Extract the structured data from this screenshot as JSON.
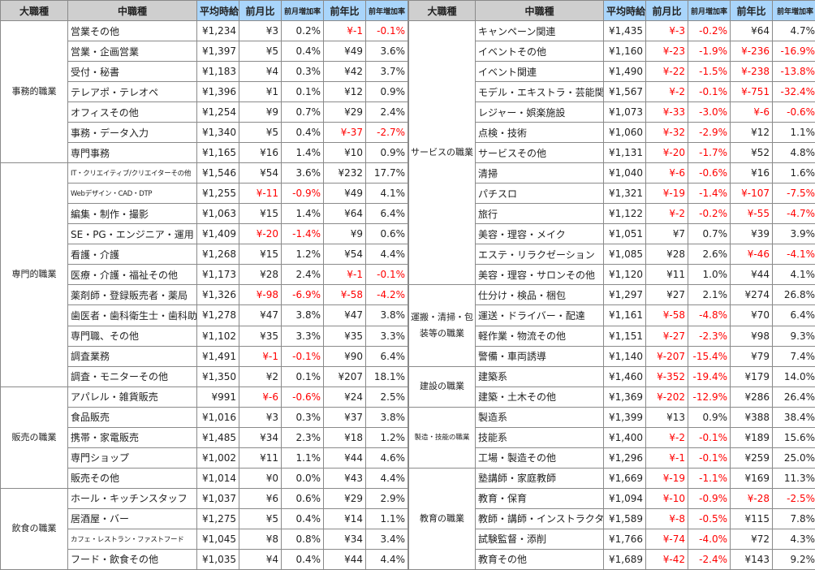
{
  "headers": [
    "大職種",
    "中職種",
    "平均時給",
    "前月比",
    "前月増加率",
    "前年比",
    "前年増加率"
  ],
  "colors": {
    "negative": "#ff0000",
    "header_gray": "#cfcfcf",
    "header_blue": "#a9d5fb",
    "border": "#8a8a8a"
  },
  "tables": [
    {
      "groups": [
        {
          "name": "事務的職業",
          "rows": [
            [
              "営業その他",
              "¥1,234",
              "¥3",
              "0.2%",
              "¥-1",
              "-0.1%"
            ],
            [
              "営業・企画営業",
              "¥1,397",
              "¥5",
              "0.4%",
              "¥49",
              "3.6%"
            ],
            [
              "受付・秘書",
              "¥1,183",
              "¥4",
              "0.3%",
              "¥42",
              "3.7%"
            ],
            [
              "テレアポ・テレオペ",
              "¥1,396",
              "¥1",
              "0.1%",
              "¥12",
              "0.9%"
            ],
            [
              "オフィスその他",
              "¥1,254",
              "¥9",
              "0.7%",
              "¥29",
              "2.4%"
            ],
            [
              "事務・データ入力",
              "¥1,340",
              "¥5",
              "0.4%",
              "¥-37",
              "-2.7%"
            ],
            [
              "専門事務",
              "¥1,165",
              "¥16",
              "1.4%",
              "¥10",
              "0.9%"
            ]
          ]
        },
        {
          "name": "専門的職業",
          "rows": [
            [
              "IT・クリエイティブ/クリエイターその他",
              "¥1,546",
              "¥54",
              "3.6%",
              "¥232",
              "17.7%"
            ],
            [
              "Webデザイン・CAD・DTP",
              "¥1,255",
              "¥-11",
              "-0.9%",
              "¥49",
              "4.1%"
            ],
            [
              "編集・制作・撮影",
              "¥1,063",
              "¥15",
              "1.4%",
              "¥64",
              "6.4%"
            ],
            [
              "SE・PG・エンジニア・運用",
              "¥1,409",
              "¥-20",
              "-1.4%",
              "¥9",
              "0.6%"
            ],
            [
              "看護・介護",
              "¥1,268",
              "¥15",
              "1.2%",
              "¥54",
              "4.4%"
            ],
            [
              "医療・介護・福祉その他",
              "¥1,173",
              "¥28",
              "2.4%",
              "¥-1",
              "-0.1%"
            ],
            [
              "薬剤師・登録販売者・薬局",
              "¥1,326",
              "¥-98",
              "-6.9%",
              "¥-58",
              "-4.2%"
            ],
            [
              "歯医者・歯科衛生士・歯科助手",
              "¥1,278",
              "¥47",
              "3.8%",
              "¥47",
              "3.8%"
            ],
            [
              "専門職、その他",
              "¥1,102",
              "¥35",
              "3.3%",
              "¥35",
              "3.3%"
            ],
            [
              "調査業務",
              "¥1,491",
              "¥-1",
              "-0.1%",
              "¥90",
              "6.4%"
            ],
            [
              "調査・モニターその他",
              "¥1,350",
              "¥2",
              "0.1%",
              "¥207",
              "18.1%"
            ]
          ]
        },
        {
          "name": "販売の職業",
          "rows": [
            [
              "アパレル・雑貨販売",
              "¥991",
              "¥-6",
              "-0.6%",
              "¥24",
              "2.5%"
            ],
            [
              "食品販売",
              "¥1,016",
              "¥3",
              "0.3%",
              "¥37",
              "3.8%"
            ],
            [
              "携帯・家電販売",
              "¥1,485",
              "¥34",
              "2.3%",
              "¥18",
              "1.2%"
            ],
            [
              "専門ショップ",
              "¥1,002",
              "¥11",
              "1.1%",
              "¥44",
              "4.6%"
            ],
            [
              "販売その他",
              "¥1,014",
              "¥0",
              "0.0%",
              "¥43",
              "4.4%"
            ]
          ]
        },
        {
          "name": "飲食の職業",
          "rows": [
            [
              "ホール・キッチンスタッフ",
              "¥1,037",
              "¥6",
              "0.6%",
              "¥29",
              "2.9%"
            ],
            [
              "居酒屋・バー",
              "¥1,275",
              "¥5",
              "0.4%",
              "¥14",
              "1.1%"
            ],
            [
              "カフェ・レストラン・ファストフード",
              "¥1,045",
              "¥8",
              "0.8%",
              "¥34",
              "3.4%"
            ],
            [
              "フード・飲食その他",
              "¥1,035",
              "¥4",
              "0.4%",
              "¥44",
              "4.4%"
            ]
          ]
        }
      ]
    },
    {
      "groups": [
        {
          "name": "サービスの職業",
          "rows": [
            [
              "キャンペーン関連",
              "¥1,435",
              "¥-3",
              "-0.2%",
              "¥64",
              "4.7%"
            ],
            [
              "イベントその他",
              "¥1,160",
              "¥-23",
              "-1.9%",
              "¥-236",
              "-16.9%"
            ],
            [
              "イベント関連",
              "¥1,490",
              "¥-22",
              "-1.5%",
              "¥-238",
              "-13.8%"
            ],
            [
              "モデル・エキストラ・芸能関連",
              "¥1,567",
              "¥-2",
              "-0.1%",
              "¥-751",
              "-32.4%"
            ],
            [
              "レジャー・娯楽施設",
              "¥1,073",
              "¥-33",
              "-3.0%",
              "¥-6",
              "-0.6%"
            ],
            [
              "点検・技術",
              "¥1,060",
              "¥-32",
              "-2.9%",
              "¥12",
              "1.1%"
            ],
            [
              "サービスその他",
              "¥1,131",
              "¥-20",
              "-1.7%",
              "¥52",
              "4.8%"
            ],
            [
              "清掃",
              "¥1,040",
              "¥-6",
              "-0.6%",
              "¥16",
              "1.6%"
            ],
            [
              "パチスロ",
              "¥1,321",
              "¥-19",
              "-1.4%",
              "¥-107",
              "-7.5%"
            ],
            [
              "旅行",
              "¥1,122",
              "¥-2",
              "-0.2%",
              "¥-55",
              "-4.7%"
            ],
            [
              "美容・理容・メイク",
              "¥1,051",
              "¥7",
              "0.7%",
              "¥39",
              "3.9%"
            ],
            [
              "エステ・リラクゼーション",
              "¥1,085",
              "¥28",
              "2.6%",
              "¥-46",
              "-4.1%"
            ],
            [
              "美容・理容・サロンその他",
              "¥1,120",
              "¥11",
              "1.0%",
              "¥44",
              "4.1%"
            ]
          ]
        },
        {
          "name": "運搬・清掃・包装等の職業",
          "rows": [
            [
              "仕分け・検品・梱包",
              "¥1,297",
              "¥27",
              "2.1%",
              "¥274",
              "26.8%"
            ],
            [
              "運送・ドライバー・配達",
              "¥1,161",
              "¥-58",
              "-4.8%",
              "¥70",
              "6.4%"
            ],
            [
              "軽作業・物流その他",
              "¥1,151",
              "¥-27",
              "-2.3%",
              "¥98",
              "9.3%"
            ],
            [
              "警備・車両誘導",
              "¥1,140",
              "¥-207",
              "-15.4%",
              "¥79",
              "7.4%"
            ]
          ]
        },
        {
          "name": "建設の職業",
          "rows": [
            [
              "建築系",
              "¥1,460",
              "¥-352",
              "-19.4%",
              "¥179",
              "14.0%"
            ],
            [
              "建築・土木その他",
              "¥1,369",
              "¥-202",
              "-12.9%",
              "¥286",
              "26.4%"
            ]
          ]
        },
        {
          "name": "製造・技能の職業",
          "rows": [
            [
              "製造系",
              "¥1,399",
              "¥13",
              "0.9%",
              "¥388",
              "38.4%"
            ],
            [
              "技能系",
              "¥1,400",
              "¥-2",
              "-0.1%",
              "¥189",
              "15.6%"
            ],
            [
              "工場・製造その他",
              "¥1,296",
              "¥-1",
              "-0.1%",
              "¥259",
              "25.0%"
            ]
          ]
        },
        {
          "name": "教育の職業",
          "rows": [
            [
              "塾講師・家庭教師",
              "¥1,669",
              "¥-19",
              "-1.1%",
              "¥169",
              "11.3%"
            ],
            [
              "教育・保育",
              "¥1,094",
              "¥-10",
              "-0.9%",
              "¥-28",
              "-2.5%"
            ],
            [
              "教師・講師・インストラクター",
              "¥1,589",
              "¥-8",
              "-0.5%",
              "¥115",
              "7.8%"
            ],
            [
              "試験監督・添削",
              "¥1,766",
              "¥-74",
              "-4.0%",
              "¥72",
              "4.3%"
            ],
            [
              "教育その他",
              "¥1,689",
              "¥-42",
              "-2.4%",
              "¥143",
              "9.2%"
            ]
          ]
        }
      ]
    }
  ]
}
